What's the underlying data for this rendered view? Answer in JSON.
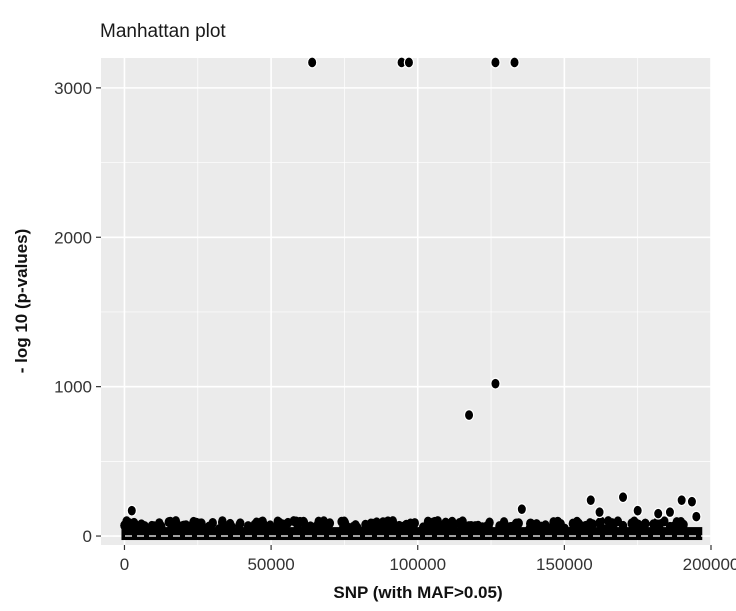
{
  "chart_data": {
    "type": "scatter",
    "title": "Manhattan plot",
    "xlabel": "SNP (with MAF>0.05)",
    "ylabel": "- log 10 (p-values)",
    "xlim": [
      -8000,
      200000
    ],
    "ylim": [
      -60,
      3200
    ],
    "xticks": [
      0,
      50000,
      100000,
      150000,
      200000
    ],
    "xtick_labels": [
      "0",
      "50000",
      "100000",
      "150000",
      "200000"
    ],
    "yticks": [
      0,
      1000,
      2000,
      3000
    ],
    "ytick_labels": [
      "0",
      "1000",
      "2000",
      "3000"
    ],
    "grid": true,
    "legend": "none",
    "colors": {
      "panel": "#ebebeb",
      "grid": "#ffffff",
      "point": "#000000"
    },
    "threshold_line": {
      "y": 0,
      "style": "dashed",
      "color": "#ffffff"
    },
    "background_band": {
      "description": "dense band of points for all SNPs",
      "x_range": [
        0,
        196000
      ],
      "y_range": [
        0,
        100
      ]
    },
    "points": [
      {
        "x": 64000,
        "y": 3170
      },
      {
        "x": 94500,
        "y": 3170
      },
      {
        "x": 97000,
        "y": 3170
      },
      {
        "x": 126500,
        "y": 3170
      },
      {
        "x": 133000,
        "y": 3170
      },
      {
        "x": 126500,
        "y": 1020
      },
      {
        "x": 117500,
        "y": 810
      },
      {
        "x": 2500,
        "y": 170
      },
      {
        "x": 135500,
        "y": 180
      },
      {
        "x": 159000,
        "y": 240
      },
      {
        "x": 162000,
        "y": 160
      },
      {
        "x": 170000,
        "y": 260
      },
      {
        "x": 175000,
        "y": 170
      },
      {
        "x": 182000,
        "y": 150
      },
      {
        "x": 186000,
        "y": 160
      },
      {
        "x": 190000,
        "y": 240
      },
      {
        "x": 193500,
        "y": 230
      },
      {
        "x": 195000,
        "y": 130
      }
    ]
  }
}
